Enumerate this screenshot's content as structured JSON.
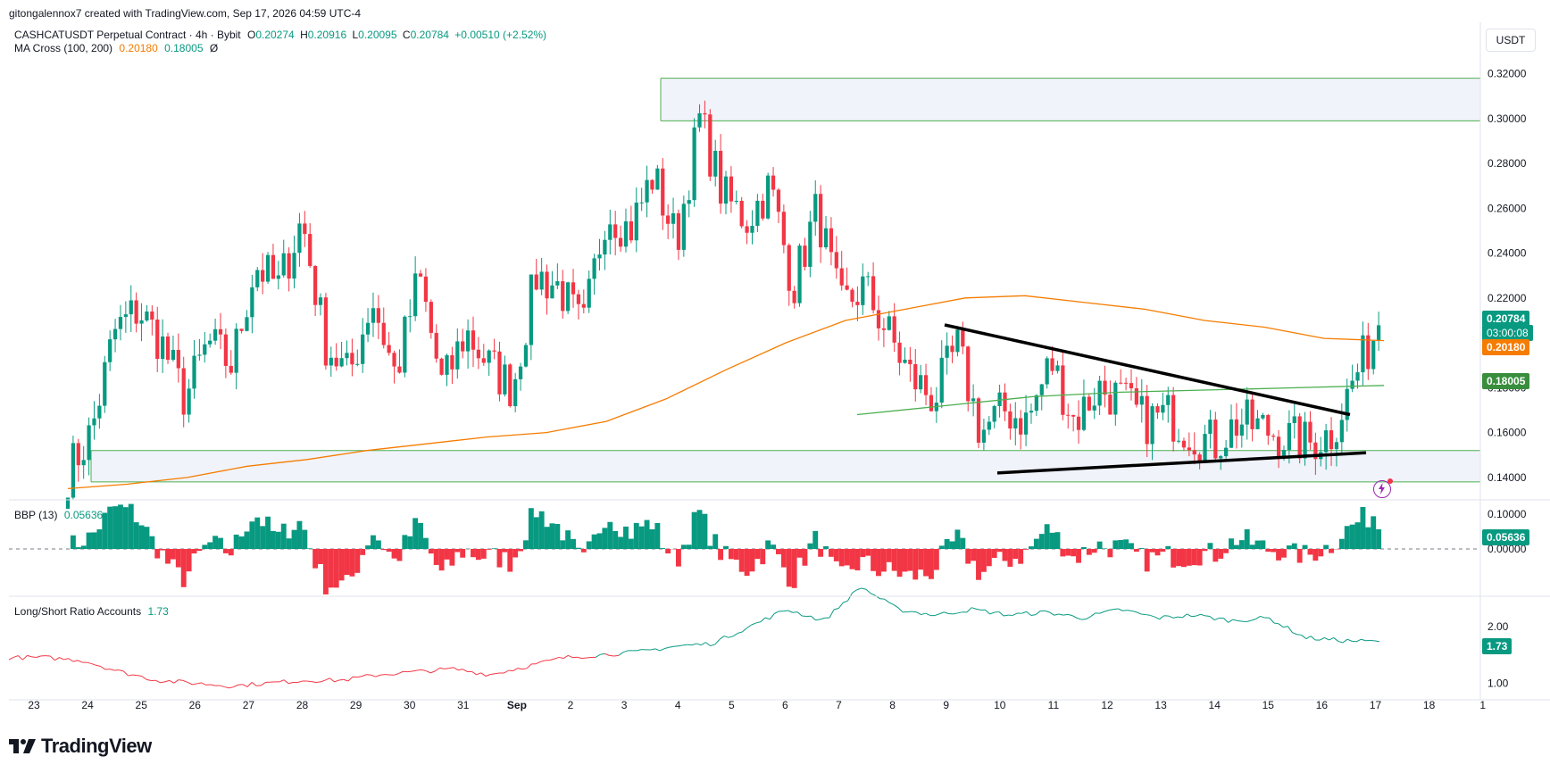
{
  "header": {
    "attribution": "gitongalennox7 created with TradingView.com, Sep 17, 2026 04:59 UTC-4"
  },
  "legend": {
    "symbol": "CASHCATUSDT Perpetual Contract · 4h · Bybit",
    "ohlc": {
      "o_label": "O",
      "o": "0.20274",
      "h_label": "H",
      "h": "0.20916",
      "l_label": "L",
      "l": "0.20095",
      "c_label": "C",
      "c": "0.20784",
      "change": "+0.00510 (+2.52%)"
    },
    "ma_label": "MA Cross (100, 200)",
    "ma_fast": "0.20180",
    "ma_slow": "0.18005",
    "ma_extra": "Ø"
  },
  "currency_button": "USDT",
  "price_tags": {
    "last_price": "0.20784",
    "countdown": "03:00:08",
    "ma_fast": "0.20180",
    "ma_slow": "0.18005"
  },
  "bbp": {
    "label": "BBP (13)",
    "value": "0.05636",
    "tag": "0.05636"
  },
  "lsr": {
    "label": "Long/Short Ratio Accounts",
    "value": "1.73",
    "tag": "1.73"
  },
  "brand": "TradingView",
  "colors": {
    "up": "#089981",
    "down": "#f23645",
    "ma_fast": "#f57c00",
    "ma_slow": "#4caf50",
    "zone": "#4caf50",
    "lsr_up": "#089981",
    "lsr_down": "#f23645"
  },
  "chart_data": [
    {
      "type": "candlestick",
      "title": "CASHCATUSDT Perpetual Contract · 4h · Bybit",
      "ylim": [
        0.13,
        0.325
      ],
      "y_ticks": [
        "0.14000",
        "0.16000",
        "0.18000",
        "0.20000",
        "0.22000",
        "0.24000",
        "0.26000",
        "0.28000",
        "0.30000",
        "0.32000"
      ],
      "x_ticks": [
        "23",
        "24",
        "25",
        "26",
        "27",
        "28",
        "29",
        "30",
        "31",
        "Sep",
        "2",
        "3",
        "4",
        "5",
        "6",
        "7",
        "8",
        "9",
        "10",
        "11",
        "12",
        "13",
        "14",
        "15",
        "16",
        "17",
        "18",
        "1"
      ],
      "anchors": [
        0.142,
        0.16,
        0.205,
        0.215,
        0.2,
        0.175,
        0.2,
        0.19,
        0.235,
        0.225,
        0.255,
        0.2,
        0.185,
        0.22,
        0.185,
        0.23,
        0.18,
        0.205,
        0.19,
        0.18,
        0.23,
        0.225,
        0.205,
        0.26,
        0.25,
        0.275,
        0.245,
        0.3,
        0.265,
        0.255,
        0.27,
        0.225,
        0.26,
        0.215,
        0.225,
        0.205,
        0.185,
        0.175,
        0.198,
        0.16,
        0.17,
        0.165,
        0.192,
        0.165,
        0.18,
        0.175,
        0.165,
        0.168,
        0.16,
        0.155,
        0.165,
        0.162,
        0.158,
        0.155,
        0.16,
        0.185,
        0.208
      ],
      "supply_zone": [
        0.299,
        0.318
      ],
      "demand_zone": [
        0.138,
        0.152
      ],
      "ma_fast_series": [
        0.135,
        0.137,
        0.14,
        0.145,
        0.148,
        0.152,
        0.155,
        0.158,
        0.16,
        0.165,
        0.175,
        0.188,
        0.2,
        0.21,
        0.215,
        0.22,
        0.221,
        0.218,
        0.215,
        0.21,
        0.207,
        0.202,
        0.201
      ],
      "ma_slow_series": [
        0.168,
        0.172,
        0.176,
        0.178,
        0.179,
        0.18,
        0.181
      ],
      "triangle_upper": [
        [
          0.208
        ],
        [
          0.168
        ]
      ],
      "triangle_lower": [
        [
          0.142
        ],
        [
          0.151
        ]
      ],
      "last_price": 0.20784,
      "ma_fast_value": 0.2018,
      "ma_slow_value": 0.18005
    },
    {
      "type": "bar",
      "title": "BBP (13)",
      "ylim": [
        -0.12,
        0.12
      ],
      "y_ticks": [
        "0.10000",
        "0.00000"
      ],
      "last_value": 0.05636
    },
    {
      "type": "line",
      "title": "Long/Short Ratio Accounts",
      "ylim": [
        0.8,
        2.5
      ],
      "y_ticks": [
        "2.00",
        "1.00"
      ],
      "anchors": [
        1.45,
        1.45,
        1.4,
        1.2,
        1.05,
        1.0,
        0.95,
        1.0,
        1.05,
        1.05,
        1.15,
        1.2,
        1.25,
        1.15,
        1.3,
        1.45,
        1.5,
        1.55,
        1.65,
        1.7,
        2.0,
        2.3,
        2.1,
        2.7,
        2.3,
        2.2,
        2.3,
        2.2,
        2.25,
        2.15,
        2.3,
        2.15,
        2.2,
        2.1,
        2.15,
        1.8,
        1.75,
        1.73
      ],
      "last_value": 1.73
    }
  ]
}
